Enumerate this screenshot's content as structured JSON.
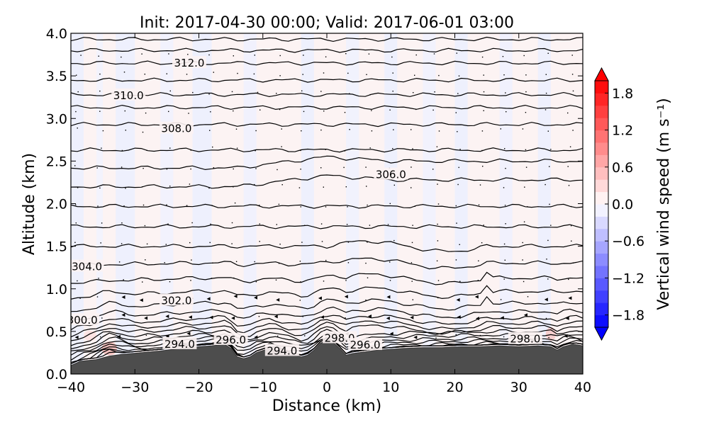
{
  "chart_data": {
    "type": "heatmap",
    "title": "Init: 2017-04-30 00:00; Valid: 2017-06-01 03:00",
    "xlabel": "Distance (km)",
    "ylabel": "Altitude (km)",
    "xlim": [
      -40,
      40
    ],
    "ylim": [
      0.0,
      4.0
    ],
    "xticks": [
      "−40",
      "−30",
      "−20",
      "−10",
      "0",
      "10",
      "20",
      "30",
      "40"
    ],
    "xtick_values": [
      -40,
      -30,
      -20,
      -10,
      0,
      10,
      20,
      30,
      40
    ],
    "yticks": [
      "0.0",
      "0.5",
      "1.0",
      "1.5",
      "2.0",
      "2.5",
      "3.0",
      "3.5",
      "4.0"
    ],
    "ytick_values": [
      0.0,
      0.5,
      1.0,
      1.5,
      2.0,
      2.5,
      3.0,
      3.5,
      4.0
    ],
    "colorbar": {
      "label": "Vertical wind speed (m s⁻¹)",
      "range": [
        -2.0,
        2.0
      ],
      "tick_labels": [
        "1.8",
        "1.2",
        "0.6",
        "0.0",
        "−0.6",
        "−1.2",
        "−1.8"
      ],
      "tick_values": [
        1.8,
        1.2,
        0.6,
        0.0,
        -0.6,
        -1.2,
        -1.8
      ],
      "colormap": "bwr",
      "extend": "both"
    },
    "contour_labels": [
      {
        "text": "312.0",
        "x": -21.5,
        "z": 3.65
      },
      {
        "text": "310.0",
        "x": -31.0,
        "z": 3.27
      },
      {
        "text": "308.0",
        "x": -23.5,
        "z": 2.88
      },
      {
        "text": "306.0",
        "x": 10.0,
        "z": 2.34
      },
      {
        "text": "304.0",
        "x": -37.5,
        "z": 1.26
      },
      {
        "text": "302.0",
        "x": -23.5,
        "z": 0.86
      },
      {
        "text": "300.0",
        "x": -38.2,
        "z": 0.63
      },
      {
        "text": "298.0",
        "x": 2.0,
        "z": 0.42
      },
      {
        "text": "298.0",
        "x": 31.0,
        "z": 0.41
      },
      {
        "text": "296.0",
        "x": -15.0,
        "z": 0.4
      },
      {
        "text": "296.0",
        "x": 6.0,
        "z": 0.34
      },
      {
        "text": "294.0",
        "x": -23.0,
        "z": 0.35
      },
      {
        "text": "294.0",
        "x": -7.0,
        "z": 0.27
      }
    ],
    "theta_levels": [
      294,
      296,
      298,
      300,
      302,
      304,
      306,
      308,
      310,
      312
    ],
    "terrain_color": "#4d4d4d",
    "grid": false
  }
}
